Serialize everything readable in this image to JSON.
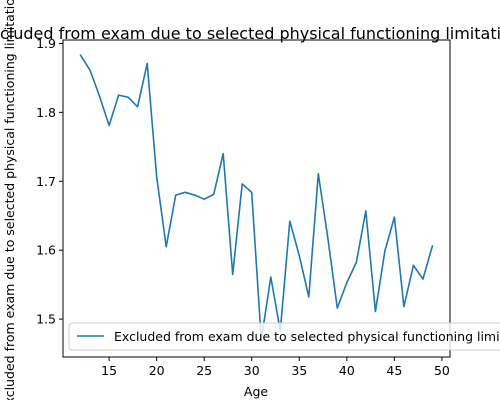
{
  "chart_data": {
    "type": "line",
    "title": "Excluded from exam due to selected physical functioning limitations",
    "xlabel": "Age",
    "ylabel": "Excluded from exam due to selected physical functioning limitations",
    "xlim": [
      10.15,
      50.85
    ],
    "ylim": [
      1.445,
      1.905
    ],
    "xticks": [
      15,
      20,
      25,
      30,
      35,
      40,
      45,
      50
    ],
    "yticks": [
      1.5,
      1.6,
      1.7,
      1.8,
      1.9
    ],
    "grid": false,
    "legend_position": "lower left",
    "colors": {
      "series": "#1f77b4",
      "axis": "#000000"
    },
    "series": [
      {
        "name": "Excluded from exam due to selected physical functioning limitations",
        "x": [
          12,
          13,
          14,
          15,
          16,
          17,
          18,
          19,
          20,
          21,
          22,
          23,
          24,
          25,
          26,
          27,
          28,
          29,
          30,
          31,
          32,
          33,
          34,
          35,
          36,
          37,
          38,
          39,
          40,
          41,
          42,
          43,
          44,
          45,
          46,
          47,
          48,
          49
        ],
        "values": [
          1.883,
          1.861,
          1.823,
          1.781,
          1.825,
          1.822,
          1.808,
          1.871,
          1.706,
          1.605,
          1.68,
          1.684,
          1.68,
          1.674,
          1.681,
          1.74,
          1.565,
          1.696,
          1.684,
          1.47,
          1.561,
          1.483,
          1.642,
          1.592,
          1.532,
          1.711,
          1.618,
          1.516,
          1.553,
          1.582,
          1.657,
          1.511,
          1.599,
          1.648,
          1.518,
          1.578,
          1.558,
          1.606
        ]
      }
    ]
  }
}
